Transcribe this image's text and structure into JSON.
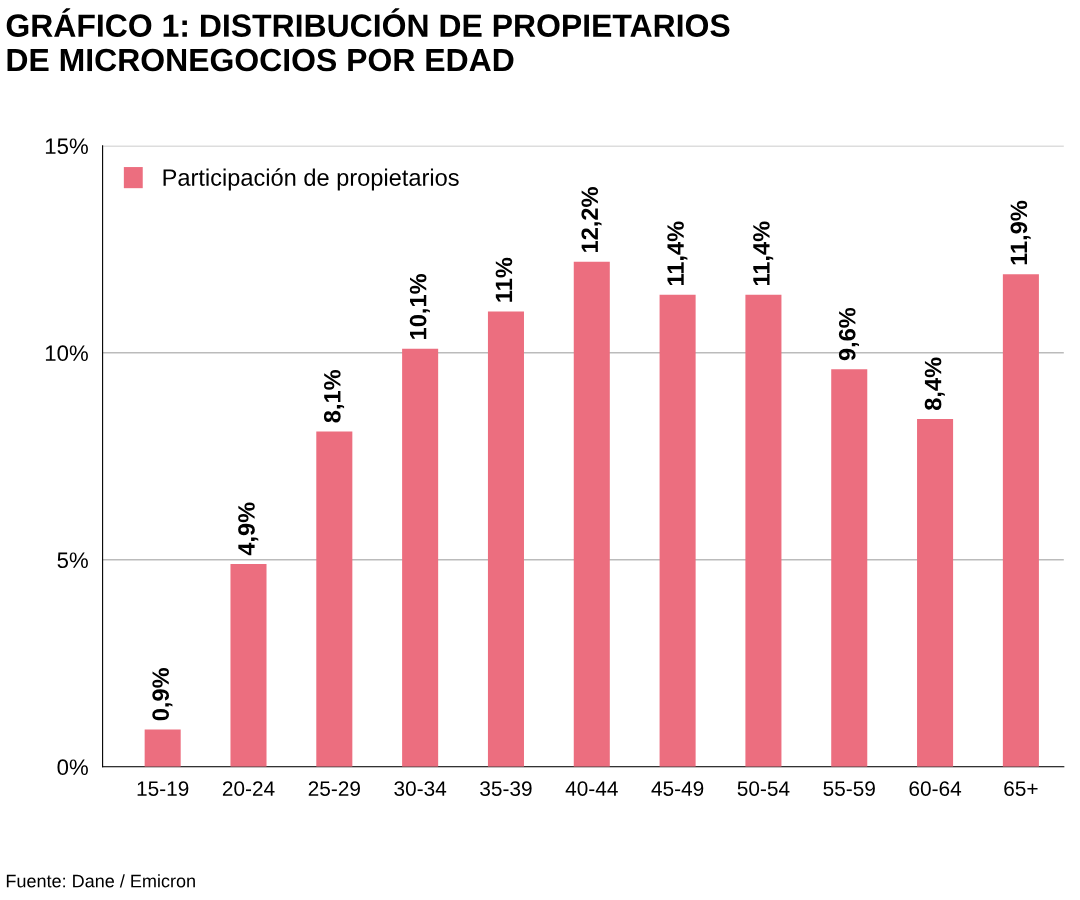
{
  "chart_data": {
    "type": "bar",
    "title": "GRÁFICO 1: DISTRIBUCIÓN DE PROPIETARIOS\nDE MICRONEGOCIOS POR EDAD",
    "categories": [
      "15-19",
      "20-24",
      "25-29",
      "30-34",
      "35-39",
      "40-44",
      "45-49",
      "50-54",
      "55-59",
      "60-64",
      "65+"
    ],
    "series": [
      {
        "name": "Participación de propietarios",
        "color": "#ec6e7f",
        "values": [
          0.9,
          4.9,
          8.1,
          10.1,
          11,
          12.2,
          11.4,
          11.4,
          9.6,
          8.4,
          11.9
        ],
        "value_labels": [
          "0,9%",
          "4,9%",
          "8,1%",
          "10,1%",
          "11%",
          "12,2%",
          "11,4%",
          "11,4%",
          "9,6%",
          "8,4%",
          "11,9%"
        ]
      }
    ],
    "ylim": [
      0,
      15
    ],
    "yticks": [
      {
        "value": 0,
        "label": "0%"
      },
      {
        "value": 5,
        "label": "5%"
      },
      {
        "value": 10,
        "label": "10%"
      },
      {
        "value": 15,
        "label": "15%"
      }
    ],
    "grid": "y",
    "legend": "top left",
    "annotations": [
      "Fuente: Dane / Emicron"
    ]
  }
}
